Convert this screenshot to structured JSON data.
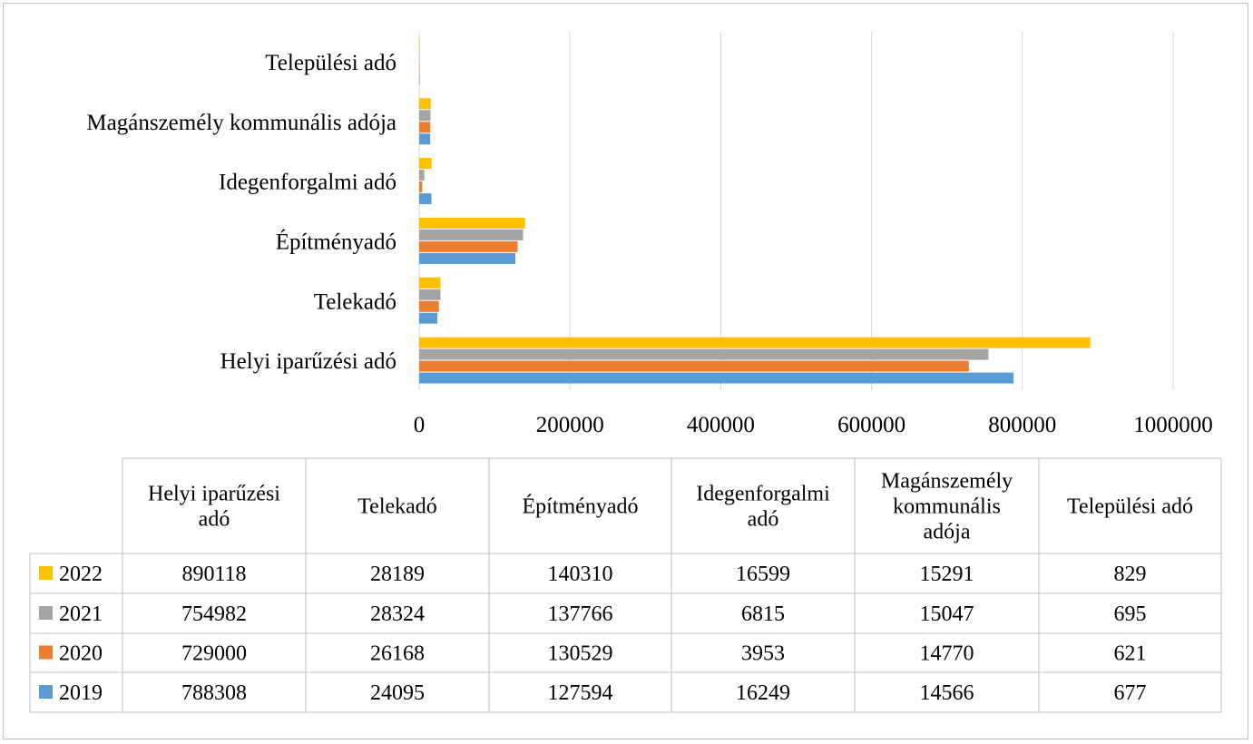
{
  "chart_data": {
    "type": "bar",
    "orientation": "horizontal",
    "categories": [
      "Helyi iparűzési adó",
      "Telekadó",
      "Építményadó",
      "Idegenforgalmi adó",
      "Magánszemély kommunális adója",
      "Települési adó"
    ],
    "table_headers": [
      [
        "Helyi iparűzési",
        "adó"
      ],
      [
        "Telekadó"
      ],
      [
        "Építményadó"
      ],
      [
        "Idegenforgalmi",
        "adó"
      ],
      [
        "Magánszemély",
        "kommunális",
        "adója"
      ],
      [
        "Települési adó"
      ]
    ],
    "series": [
      {
        "name": "2019",
        "color": "#5b9bd5",
        "values": [
          788308,
          24095,
          127594,
          16249,
          14566,
          677
        ]
      },
      {
        "name": "2020",
        "color": "#ed7d31",
        "values": [
          729000,
          26168,
          130529,
          3953,
          14770,
          621
        ]
      },
      {
        "name": "2021",
        "color": "#a5a5a5",
        "values": [
          754982,
          28324,
          137766,
          6815,
          15047,
          695
        ]
      },
      {
        "name": "2022",
        "color": "#ffc000",
        "values": [
          890118,
          28189,
          140310,
          16599,
          15291,
          829
        ]
      }
    ],
    "table_row_order": [
      "2022",
      "2021",
      "2020",
      "2019"
    ],
    "xlim": [
      0,
      1000000
    ],
    "xticks": [
      0,
      200000,
      400000,
      600000,
      800000,
      1000000
    ],
    "tick_labels": [
      "0",
      "200000",
      "400000",
      "600000",
      "800000",
      "1000000"
    ],
    "grid": "vertical",
    "legend": "data-table"
  }
}
